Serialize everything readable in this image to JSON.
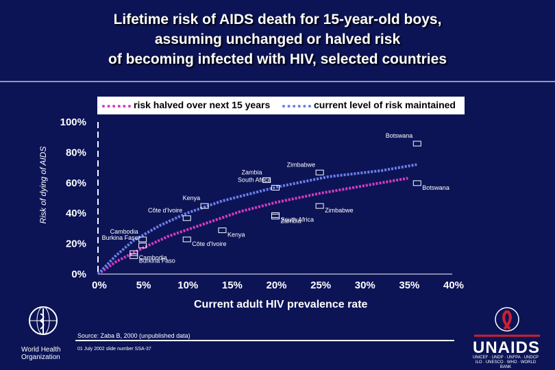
{
  "title_lines": [
    "Lifetime risk of AIDS death for 15-year-old boys,",
    "assuming unchanged or halved risk",
    "of becoming infected with HIV, selected countries"
  ],
  "colors": {
    "background": "#0c1456",
    "halved": "#d63cbd",
    "maintained": "#6b7fe8"
  },
  "chart_data": {
    "type": "scatter",
    "xlabel": "Current adult HIV prevalence rate",
    "ylabel": "Risk of dying of AIDS",
    "xlim": [
      0,
      40
    ],
    "ylim": [
      0,
      100
    ],
    "x_ticks": [
      "0%",
      "5%",
      "10%",
      "15%",
      "20%",
      "25%",
      "30%",
      "35%",
      "40%"
    ],
    "y_ticks": [
      "0%",
      "20%",
      "40%",
      "60%",
      "80%",
      "100%"
    ],
    "legend_position": "top",
    "series": [
      {
        "name": "risk halved over next 15 years",
        "color": "#d63cbd",
        "curve": [
          [
            0,
            0
          ],
          [
            2,
            8
          ],
          [
            5,
            17
          ],
          [
            8,
            25
          ],
          [
            12,
            33
          ],
          [
            16,
            41
          ],
          [
            20,
            47
          ],
          [
            25,
            53
          ],
          [
            30,
            58
          ],
          [
            35,
            63
          ]
        ],
        "points": [
          {
            "label": "Cambodia",
            "x": 4,
            "y": 14
          },
          {
            "label": "Burkina Faso",
            "x": 4,
            "y": 12
          },
          {
            "label": "Côte d'Ivoire",
            "x": 10,
            "y": 23
          },
          {
            "label": "Kenya",
            "x": 14,
            "y": 29
          },
          {
            "label": "Zambia",
            "x": 20,
            "y": 38
          },
          {
            "label": "South Africa",
            "x": 20,
            "y": 39
          },
          {
            "label": "Zimbabwe",
            "x": 25,
            "y": 45
          },
          {
            "label": "Botswana",
            "x": 36,
            "y": 60
          }
        ]
      },
      {
        "name": "current level of risk maintained",
        "color": "#6b7fe8",
        "curve": [
          [
            0,
            0
          ],
          [
            2,
            12
          ],
          [
            4,
            22
          ],
          [
            7,
            32
          ],
          [
            10,
            40
          ],
          [
            14,
            48
          ],
          [
            20,
            57
          ],
          [
            26,
            64
          ],
          [
            32,
            68
          ],
          [
            36,
            72
          ]
        ],
        "points": [
          {
            "label": "Burkina Faso",
            "x": 5,
            "y": 19
          },
          {
            "label": "Cambodia",
            "x": 5,
            "y": 23
          },
          {
            "label": "Côte d'Ivoire",
            "x": 10,
            "y": 37
          },
          {
            "label": "Kenya",
            "x": 12,
            "y": 45
          },
          {
            "label": "Zambia",
            "x": 19,
            "y": 62
          },
          {
            "label": "South Africa",
            "x": 20,
            "y": 57
          },
          {
            "label": "Zimbabwe",
            "x": 25,
            "y": 67
          },
          {
            "label": "Botswana",
            "x": 36,
            "y": 86
          }
        ]
      }
    ]
  },
  "source": "Source: Zaba B, 2000 (unpublished data)",
  "slide": "01 July 2002 slide number SSA-37",
  "who_name": [
    "World Health",
    "Organization"
  ],
  "unaids_name": "UNAIDS",
  "unaids_sub": [
    "UNICEF · UNDP · UNFPA · UNDCP",
    "ILO · UNESCO · WHO · WORLD BANK"
  ]
}
